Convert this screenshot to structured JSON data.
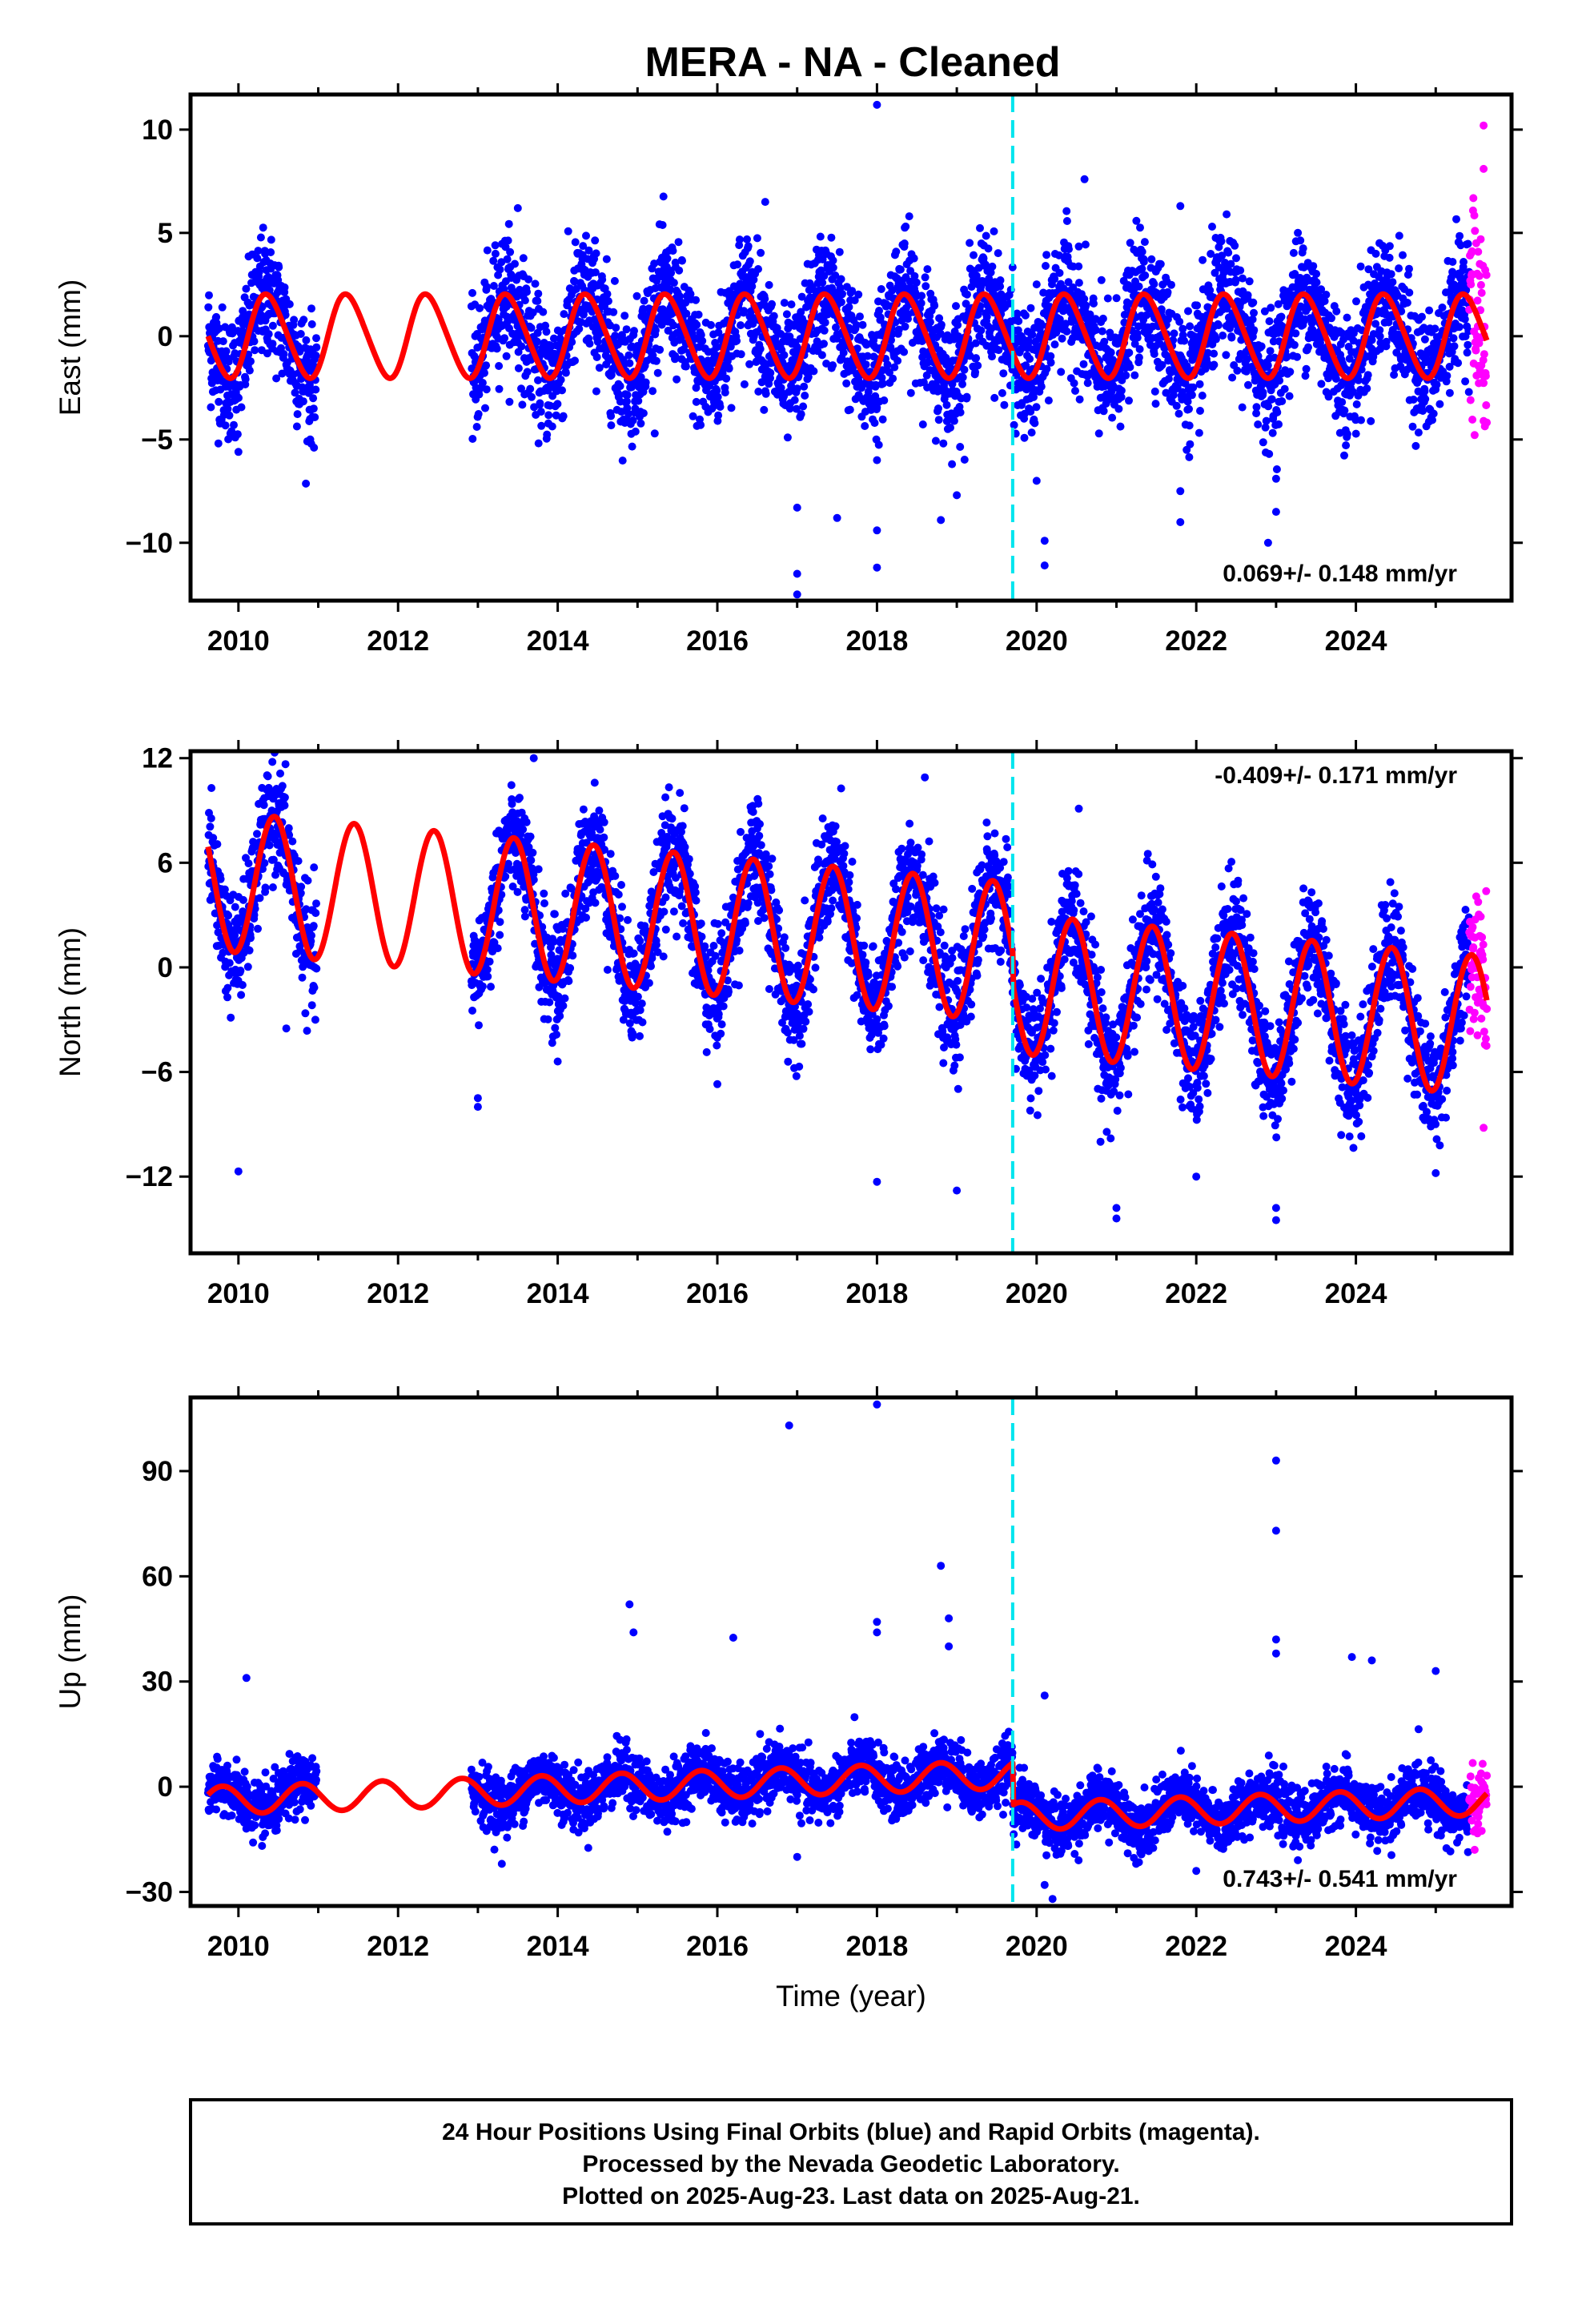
{
  "title": "MERA  - NA - Cleaned",
  "footer_lines": [
    "24 Hour Positions Using Final Orbits (blue) and Rapid Orbits (magenta).",
    "Processed by the Nevada Geodetic Laboratory.",
    "Plotted on 2025-Aug-23. Last data on 2025-Aug-21."
  ],
  "colors": {
    "final_orbits": "#0000ff",
    "rapid_orbits": "#ff00ff",
    "model_fit": "#ff0000",
    "break_line": "#00e5ee"
  },
  "chart_data": [
    {
      "type": "scatter",
      "name": "east",
      "ylabel": "East (mm)",
      "xlabel": "",
      "xlim": [
        2009.4,
        2025.95
      ],
      "ylim": [
        -12.8,
        11.7
      ],
      "yticks": [
        10,
        5,
        0,
        -5,
        -10
      ],
      "ytick_labels": [
        "10",
        "5",
        "0",
        "−5",
        "−10"
      ],
      "xticks": [
        2010,
        2012,
        2014,
        2016,
        2018,
        2020,
        2022,
        2024
      ],
      "xtick_labels": [
        "2010",
        "2012",
        "2014",
        "2016",
        "2018",
        "2020",
        "2022",
        "2024"
      ],
      "rate_label": "0.069+/- 0.148 mm/yr",
      "rate_position": "bottom-right",
      "equipment_change": 2019.7,
      "model": {
        "amp": 2.0,
        "phase": 0.12,
        "trend": 0.0,
        "offset": 0.0,
        "step": 0.0,
        "semi": 0.2
      },
      "series": [
        {
          "name": "Final Orbits",
          "color": "blue",
          "segments": [
            [
              2009.62,
              2010.98
            ],
            [
              2012.92,
              2025.42
            ]
          ],
          "scatter": 1.5
        },
        {
          "name": "Rapid Orbits",
          "color": "magenta",
          "segments": [
            [
              2025.42,
              2025.64
            ]
          ],
          "scatter": 2.5
        }
      ],
      "outliers": [
        [
          2018.0,
          11.2
        ],
        [
          2016.6,
          6.5
        ],
        [
          2013.5,
          6.2
        ],
        [
          2020.6,
          7.6
        ],
        [
          2021.8,
          6.3
        ],
        [
          2025.6,
          10.2
        ],
        [
          2025.6,
          8.1
        ],
        [
          2025.6,
          -4.1
        ],
        [
          2017.0,
          -12.5
        ],
        [
          2017.0,
          -11.5
        ],
        [
          2017.0,
          -8.3
        ],
        [
          2017.5,
          -8.8
        ],
        [
          2018.0,
          -11.2
        ],
        [
          2018.0,
          -9.4
        ],
        [
          2018.0,
          -6.0
        ],
        [
          2018.8,
          -8.9
        ],
        [
          2019.0,
          -7.7
        ],
        [
          2020.1,
          -11.1
        ],
        [
          2020.1,
          -9.9
        ],
        [
          2020.0,
          -7.0
        ],
        [
          2021.8,
          -9.0
        ],
        [
          2021.8,
          -7.5
        ],
        [
          2022.9,
          -10.0
        ],
        [
          2023.0,
          -8.5
        ],
        [
          2023.0,
          -6.9
        ],
        [
          2010.0,
          -5.6
        ],
        [
          2010.9,
          -5.0
        ],
        [
          2009.9,
          -4.7
        ]
      ]
    },
    {
      "type": "scatter",
      "name": "north",
      "ylabel": "North (mm)",
      "xlabel": "",
      "xlim": [
        2009.4,
        2025.95
      ],
      "ylim": [
        -16.4,
        12.4
      ],
      "yticks": [
        12,
        6,
        0,
        -6,
        -12
      ],
      "ytick_labels": [
        "12",
        "6",
        "0",
        "−6",
        "−12"
      ],
      "xticks": [
        2010,
        2012,
        2014,
        2016,
        2018,
        2020,
        2022,
        2024
      ],
      "xtick_labels": [
        "2010",
        "2012",
        "2014",
        "2016",
        "2018",
        "2020",
        "2022",
        "2024"
      ],
      "rate_label": "-0.409+/- 0.171 mm/yr",
      "rate_position": "top-right",
      "equipment_change": 2019.7,
      "model": {
        "amp": 4.0,
        "phase": 0.2,
        "trend": -0.409,
        "offset": 5.0,
        "step": -1.8,
        "semi": 0.0
      },
      "series": [
        {
          "name": "Final Orbits",
          "color": "blue",
          "segments": [
            [
              2009.62,
              2010.98
            ],
            [
              2012.92,
              2025.42
            ]
          ],
          "scatter": 1.6
        },
        {
          "name": "Rapid Orbits",
          "color": "magenta",
          "segments": [
            [
              2025.42,
              2025.64
            ]
          ],
          "scatter": 2.0
        }
      ],
      "outliers": [
        [
          2013.7,
          12.0
        ],
        [
          2018.6,
          10.9
        ],
        [
          2010.0,
          -11.7
        ],
        [
          2018.0,
          -12.3
        ],
        [
          2019.0,
          -12.8
        ],
        [
          2021.0,
          -14.4
        ],
        [
          2021.0,
          -13.8
        ],
        [
          2023.0,
          -14.5
        ],
        [
          2023.0,
          -13.8
        ],
        [
          2013.0,
          -8.0
        ],
        [
          2013.0,
          -7.5
        ],
        [
          2014.0,
          -5.4
        ],
        [
          2016.0,
          -6.7
        ],
        [
          2020.8,
          -10.0
        ],
        [
          2022.0,
          -12.0
        ],
        [
          2025.6,
          -9.2
        ],
        [
          2025.0,
          -11.8
        ],
        [
          2010.6,
          -3.5
        ]
      ]
    },
    {
      "type": "scatter",
      "name": "up",
      "ylabel": "Up (mm)",
      "xlabel": "Time (year)",
      "xlim": [
        2009.4,
        2025.95
      ],
      "ylim": [
        -34.0,
        111.0
      ],
      "yticks": [
        90,
        60,
        30,
        0,
        -30
      ],
      "ytick_labels": [
        "90",
        "60",
        "30",
        "0",
        "−30"
      ],
      "xticks": [
        2010,
        2012,
        2014,
        2016,
        2018,
        2020,
        2022,
        2024
      ],
      "xtick_labels": [
        "2010",
        "2012",
        "2014",
        "2016",
        "2018",
        "2020",
        "2022",
        "2024"
      ],
      "rate_label": "0.743+/- 0.541 mm/yr",
      "rate_position": "bottom-right",
      "equipment_change": 2019.7,
      "model": {
        "amp": 4.0,
        "phase": 0.55,
        "trend": 0.743,
        "offset": -4.0,
        "step": -12.0,
        "semi": 0.0
      },
      "series": [
        {
          "name": "Final Orbits",
          "color": "blue",
          "segments": [
            [
              2009.62,
              2010.98
            ],
            [
              2012.92,
              2025.42
            ]
          ],
          "scatter": 4.0
        },
        {
          "name": "Rapid Orbits",
          "color": "magenta",
          "segments": [
            [
              2025.42,
              2025.64
            ]
          ],
          "scatter": 5.0
        }
      ],
      "outliers": [
        [
          2016.9,
          103.0
        ],
        [
          2018.0,
          109.0
        ],
        [
          2018.8,
          63.0
        ],
        [
          2014.9,
          52.0
        ],
        [
          2016.2,
          42.5
        ],
        [
          2018.0,
          47.0
        ],
        [
          2018.0,
          44.0
        ],
        [
          2018.9,
          48.0
        ],
        [
          2018.9,
          40.0
        ],
        [
          2014.95,
          44.0
        ],
        [
          2023.0,
          93.0
        ],
        [
          2023.0,
          73.0
        ],
        [
          2023.0,
          42.0
        ],
        [
          2023.0,
          38.0
        ],
        [
          2023.95,
          37.0
        ],
        [
          2024.2,
          36.0
        ],
        [
          2025.0,
          33.0
        ],
        [
          2010.1,
          31.0
        ],
        [
          2020.1,
          26.0
        ],
        [
          2020.2,
          -32.0
        ],
        [
          2020.1,
          -28.0
        ],
        [
          2013.3,
          -22.0
        ],
        [
          2017.0,
          -20.0
        ],
        [
          2022.0,
          -24.0
        ]
      ]
    }
  ]
}
